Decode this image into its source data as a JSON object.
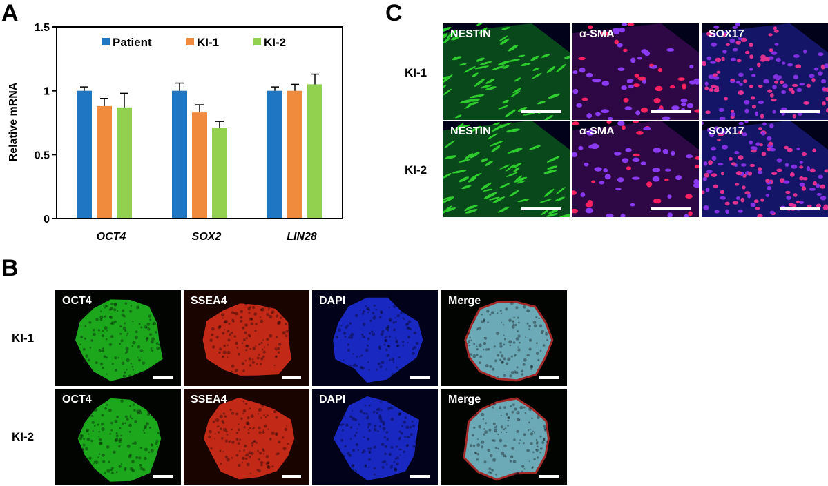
{
  "panels": {
    "a": "A",
    "b": "B",
    "c": "C"
  },
  "chart_data": {
    "type": "bar",
    "ylabel": "Relative mRNA",
    "ylim": [
      0,
      1.5
    ],
    "yticks": [
      "0",
      "0.5",
      "1",
      "1.5"
    ],
    "categories": [
      "OCT4",
      "SOX2",
      "LIN28"
    ],
    "series": [
      {
        "name": "Patient",
        "color": "#1f77c4",
        "values": [
          1.0,
          1.0,
          1.0
        ],
        "errors": [
          0.03,
          0.06,
          0.03
        ]
      },
      {
        "name": "KI-1",
        "color": "#f08a3c",
        "values": [
          0.88,
          0.83,
          1.0
        ],
        "errors": [
          0.06,
          0.06,
          0.05
        ]
      },
      {
        "name": "KI-2",
        "color": "#92d050",
        "values": [
          0.87,
          0.71,
          1.05
        ],
        "errors": [
          0.11,
          0.05,
          0.08
        ]
      }
    ],
    "legend": "top"
  },
  "panel_b": {
    "rows": [
      "KI-1",
      "KI-2"
    ],
    "columns": [
      "OCT4",
      "SSEA4",
      "DAPI",
      "Merge"
    ]
  },
  "panel_c": {
    "rows": [
      "KI-1",
      "KI-2"
    ],
    "columns": [
      [
        "NESTIN",
        "α-SMA",
        "SOX17"
      ],
      [
        "NESTIN",
        "α-SMA",
        "SOX17"
      ]
    ]
  },
  "colors": {
    "oct4": "#22c422",
    "ssea4": "#e0301a",
    "dapi": "#1f2fe0",
    "merge": "#7fc8d8",
    "nestin": "#2ecc2e",
    "sma": "#d8206a",
    "sox17": "#8030e0"
  }
}
